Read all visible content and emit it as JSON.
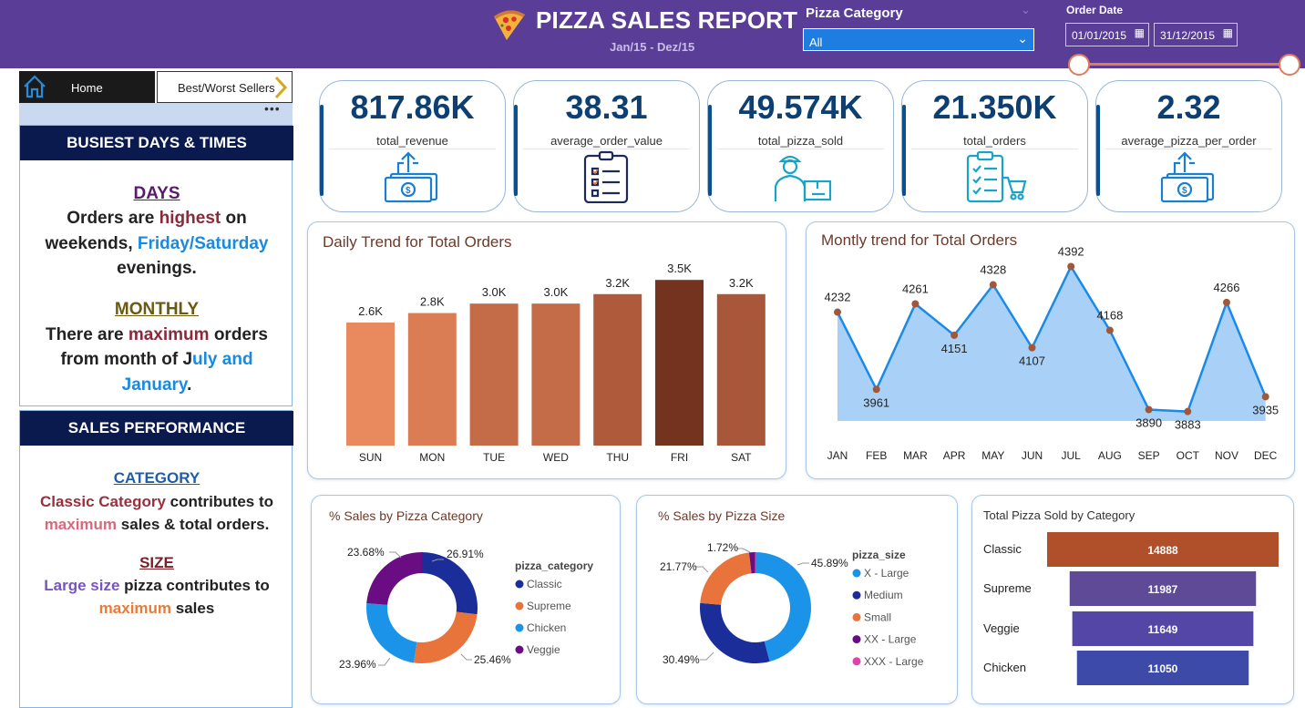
{
  "header": {
    "title": "PIZZA SALES REPORT",
    "subtitle": "Jan/15 - Dez/15",
    "category_filter": {
      "label": "Pizza Category",
      "selected": "All"
    },
    "date_filter": {
      "label": "Order Date",
      "start": "01/01/2015",
      "end": "31/12/2015"
    }
  },
  "nav": {
    "home_label": "Home",
    "best_worst_label": "Best/Worst Sellers"
  },
  "busiest": {
    "title": "BUSIEST DAYS & TIMES",
    "days_heading": "DAYS",
    "days_line1_a": "Orders are ",
    "days_line1_b": "highest",
    "days_line1_c": " on",
    "days_line2_a": "weekends, ",
    "days_line2_b": "Friday/Saturday",
    "days_line3": "evenings.",
    "monthly_heading": "MONTHLY",
    "monthly_line1_a": "There are ",
    "monthly_line1_b": "maximum",
    "monthly_line1_c": " orders",
    "monthly_line2_a": "from month of J",
    "monthly_line2_b": "uly and",
    "monthly_line3_a": "January",
    "monthly_line3_b": "."
  },
  "sales_perf": {
    "title": "SALES PERFORMANCE",
    "category_heading": "CATEGORY",
    "cat_line1_a": "Classic Category",
    "cat_line1_b": " contributes to",
    "cat_line2_a": "maximum",
    "cat_line2_b": " sales & total orders.",
    "size_heading": "SIZE",
    "size_line1_a": "Large size",
    "size_line1_b": " pizza contributes to",
    "size_line2_a": "maximum",
    "size_line2_b": " sales"
  },
  "kpis": [
    {
      "value": "817.86K",
      "label": "total_revenue",
      "icon": "money-up-icon"
    },
    {
      "value": "38.31",
      "label": "average_order_value",
      "icon": "clipboard-icon"
    },
    {
      "value": "49.574K",
      "label": "total_pizza_sold",
      "icon": "delivery-man-icon"
    },
    {
      "value": "21.350K",
      "label": "total_orders",
      "icon": "order-list-cart-icon"
    },
    {
      "value": "2.32",
      "label": "average_pizza_per_order",
      "icon": "money-up-icon"
    }
  ],
  "colors": {
    "header": "#5a3d96",
    "navy": "#0a1a4f",
    "kpi_text": "#0d3f72"
  },
  "chart_data": [
    {
      "type": "bar",
      "title": "Daily Trend for Total Orders",
      "categories": [
        "SUN",
        "MON",
        "TUE",
        "WED",
        "THU",
        "FRI",
        "SAT"
      ],
      "values": [
        2.6,
        2.8,
        3.0,
        3.0,
        3.2,
        3.5,
        3.2
      ],
      "data_labels": [
        "2.6K",
        "2.8K",
        "3.0K",
        "3.0K",
        "3.2K",
        "3.5K",
        "3.2K"
      ],
      "bar_colors": [
        "#e8895e",
        "#da7d55",
        "#c46c47",
        "#c46c47",
        "#b05a3c",
        "#73331e",
        "#a9573b"
      ],
      "ylim": [
        0,
        3.6
      ]
    },
    {
      "type": "area",
      "title": "Montly trend for Total Orders",
      "categories": [
        "JAN",
        "FEB",
        "MAR",
        "APR",
        "MAY",
        "JUN",
        "JUL",
        "AUG",
        "SEP",
        "OCT",
        "NOV",
        "DEC"
      ],
      "values": [
        4232,
        3961,
        4261,
        4151,
        4328,
        4107,
        4392,
        4168,
        3890,
        3883,
        4266,
        3935
      ],
      "ylim": [
        3850,
        4400
      ]
    },
    {
      "type": "pie",
      "title": "% Sales by Pizza Category",
      "legend_title": "pizza_category",
      "labels": [
        "Classic",
        "Supreme",
        "Chicken",
        "Veggie"
      ],
      "values": [
        26.91,
        25.46,
        23.96,
        23.68
      ],
      "value_labels": [
        "26.91%",
        "25.46%",
        "23.96%",
        "23.68%"
      ],
      "colors": [
        "#1a2d99",
        "#e8743b",
        "#1a93e8",
        "#6a0d82"
      ]
    },
    {
      "type": "pie",
      "title": "% Sales by Pizza Size",
      "legend_title": "pizza_size",
      "labels": [
        "X - Large",
        "Medium",
        "Small",
        "XX - Large",
        "XXX - Large"
      ],
      "values": [
        45.89,
        30.49,
        21.77,
        1.72,
        0.13
      ],
      "value_labels": [
        "45.89%",
        "30.49%",
        "21.77%",
        "1.72%",
        ""
      ],
      "colors": [
        "#1a93e8",
        "#1a2d99",
        "#e8743b",
        "#6a0d82",
        "#e044a7"
      ]
    },
    {
      "type": "bar",
      "orientation": "horizontal-funnel",
      "title": "Total Pizza Sold by Category",
      "categories": [
        "Classic",
        "Supreme",
        "Veggie",
        "Chicken"
      ],
      "values": [
        14888,
        11987,
        11649,
        11050
      ],
      "bar_colors": [
        "#b0502a",
        "#5e4a96",
        "#5446a6",
        "#3e4aa8"
      ]
    }
  ]
}
